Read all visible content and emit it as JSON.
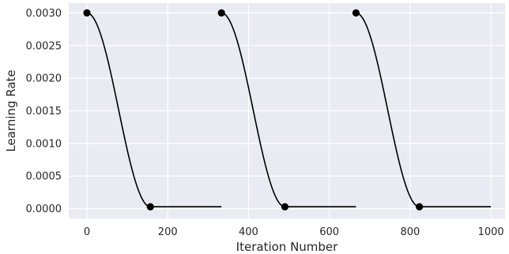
{
  "chart_data": {
    "type": "line",
    "xlabel": "Iteration Number",
    "ylabel": "Learning Rate",
    "xlim": [
      -45,
      1035
    ],
    "ylim": [
      -0.00015,
      0.00315
    ],
    "x_ticks": [
      0,
      200,
      400,
      600,
      800,
      1000
    ],
    "x_tick_labels": [
      "0",
      "200",
      "400",
      "600",
      "800",
      "1000"
    ],
    "y_ticks": [
      0.0,
      0.0005,
      0.001,
      0.0015,
      0.002,
      0.0025,
      0.003
    ],
    "y_tick_labels": [
      "0.0000",
      "0.0005",
      "0.0010",
      "0.0015",
      "0.0020",
      "0.0025",
      "0.0030"
    ],
    "grid": true,
    "colors": {
      "background": "#eaeaf2",
      "grid": "#ffffff",
      "line": "#000000",
      "marker": "#000000"
    },
    "cycles": [
      {
        "start": 0,
        "decay_end": 157,
        "cycle_end": 333,
        "max_lr": 0.003,
        "min_lr": 3e-05
      },
      {
        "start": 333,
        "decay_end": 490,
        "cycle_end": 666,
        "max_lr": 0.003,
        "min_lr": 3e-05
      },
      {
        "start": 666,
        "decay_end": 823,
        "cycle_end": 1000,
        "max_lr": 0.003,
        "min_lr": 3e-05
      }
    ],
    "markers": [
      {
        "x": 0,
        "y": 0.003
      },
      {
        "x": 157,
        "y": 3e-05
      },
      {
        "x": 333,
        "y": 0.003
      },
      {
        "x": 490,
        "y": 3e-05
      },
      {
        "x": 666,
        "y": 0.003
      },
      {
        "x": 823,
        "y": 3e-05
      }
    ]
  }
}
